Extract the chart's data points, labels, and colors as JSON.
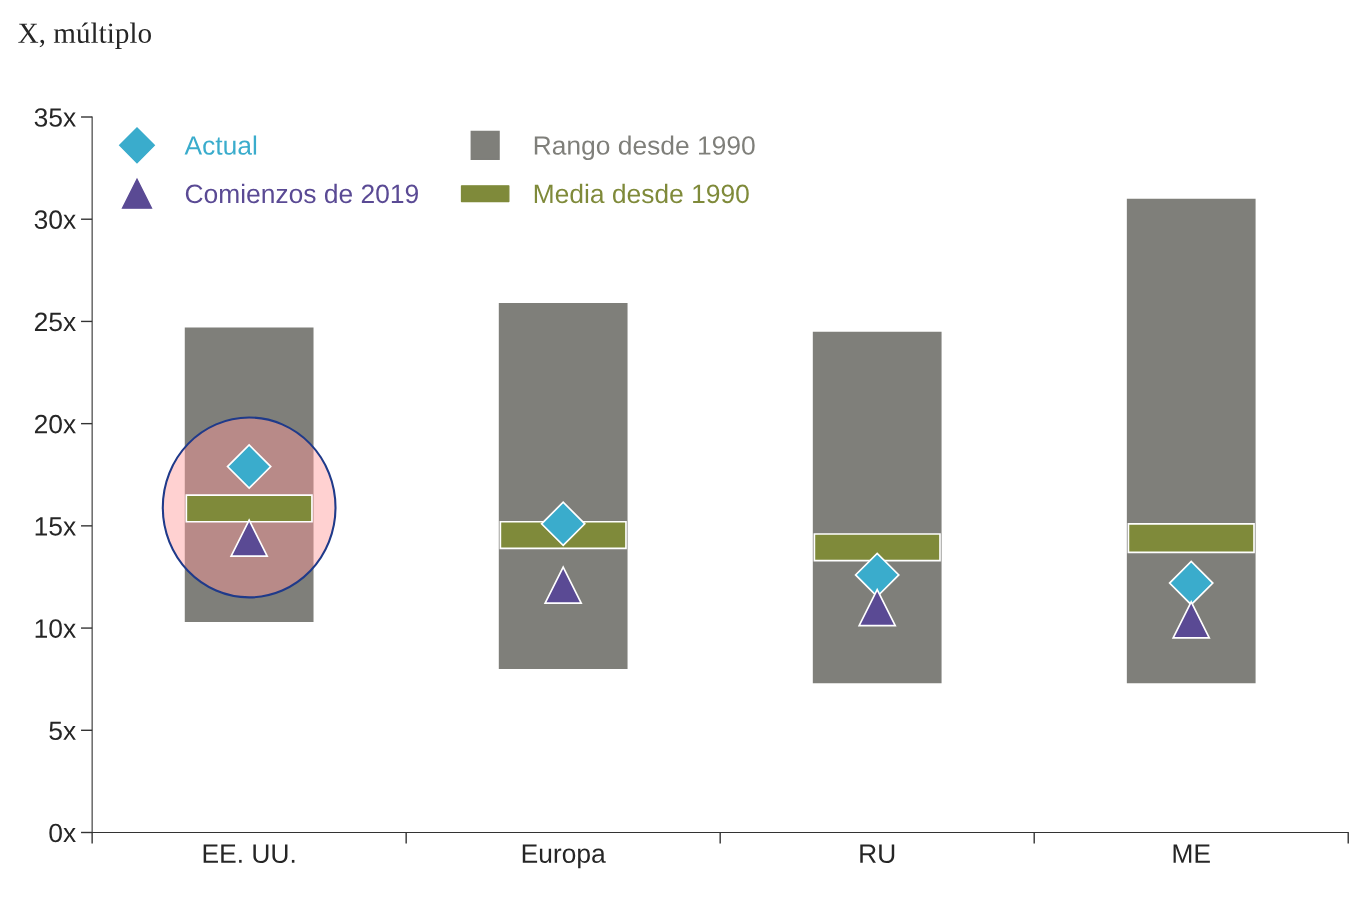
{
  "chart_data": {
    "type": "bar",
    "ylabel": "X, múltiplo",
    "categories": [
      "EE. UU.",
      "Europa",
      "RU",
      "ME"
    ],
    "series": [
      {
        "name": "Rango desde 1990",
        "color": "#7f7f7a",
        "base": [
          10.3,
          8.0,
          7.3,
          7.3
        ],
        "values": [
          14.4,
          17.9,
          17.2,
          23.7
        ]
      },
      {
        "name": "Media desde 1990",
        "type": "bar",
        "color": "#7f8a3a",
        "base": [
          15.2,
          13.9,
          13.3,
          13.7
        ],
        "values": [
          1.3,
          1.3,
          1.3,
          1.4
        ]
      },
      {
        "name": "Actual",
        "type": "scatter",
        "marker": "diamond",
        "color": "#3aaccc",
        "values": [
          17.9,
          15.1,
          12.6,
          12.2
        ]
      },
      {
        "name": "Comienzos de 2019",
        "type": "scatter",
        "marker": "triangle",
        "color": "#5a4a94",
        "values": [
          14.4,
          12.1,
          11.0,
          10.4
        ]
      }
    ],
    "ylim": [
      0,
      35
    ],
    "yticks": [
      {
        "value": 0,
        "label": "0x"
      },
      {
        "value": 5,
        "label": "5x"
      },
      {
        "value": 10,
        "label": "10x"
      },
      {
        "value": 15,
        "label": "15x"
      },
      {
        "value": 20,
        "label": "20x"
      },
      {
        "value": 25,
        "label": "25x"
      },
      {
        "value": 30,
        "label": "30x"
      },
      {
        "value": 35,
        "label": "35x"
      }
    ],
    "grid": false,
    "legend": "top left"
  }
}
